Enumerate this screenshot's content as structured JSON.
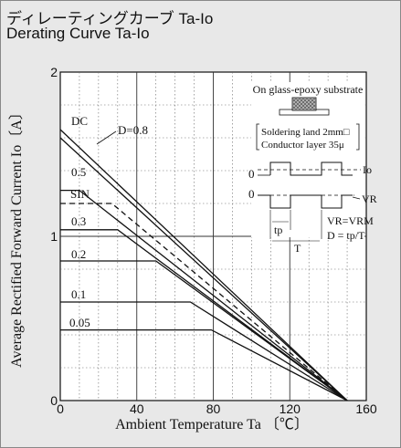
{
  "header": {
    "title_jp": "ディレーティングカーブ Ta-Io",
    "title_en": "Derating Curve Ta-Io"
  },
  "chart_data": {
    "type": "line",
    "title": "",
    "xlabel": "Ambient Temperature Ta 〔℃〕",
    "ylabel": "Average Rectified Forward Current Io〔A〕",
    "xlim": [
      0,
      160
    ],
    "ylim": [
      0,
      2
    ],
    "x_ticks": [
      "0",
      "40",
      "80",
      "120",
      "160"
    ],
    "y_ticks": [
      "0",
      "1",
      "2"
    ],
    "grid": true,
    "series": [
      {
        "name": "DC",
        "points": [
          [
            0,
            1.65
          ],
          [
            150,
            0
          ]
        ]
      },
      {
        "name": "D=0.8",
        "points": [
          [
            0,
            1.6
          ],
          [
            150,
            0
          ]
        ]
      },
      {
        "name": "0.5",
        "points": [
          [
            0,
            1.28
          ],
          [
            10,
            1.28
          ],
          [
            150,
            0
          ]
        ]
      },
      {
        "name": "SIN",
        "points": [
          [
            0,
            1.2
          ],
          [
            27,
            1.2
          ],
          [
            150,
            0
          ]
        ],
        "dashed": true
      },
      {
        "name": "0.3",
        "points": [
          [
            0,
            1.04
          ],
          [
            30,
            1.04
          ],
          [
            150,
            0
          ]
        ]
      },
      {
        "name": "0.2",
        "points": [
          [
            0,
            0.85
          ],
          [
            50,
            0.85
          ],
          [
            150,
            0
          ]
        ]
      },
      {
        "name": "0.1",
        "points": [
          [
            0,
            0.6
          ],
          [
            68,
            0.6
          ],
          [
            150,
            0
          ]
        ]
      },
      {
        "name": "0.05",
        "points": [
          [
            0,
            0.43
          ],
          [
            79,
            0.43
          ],
          [
            150,
            0
          ]
        ]
      }
    ],
    "annotations": {
      "substrate_title": "On glass-epoxy substrate",
      "land_label": "Soldering land 2mm□",
      "conductor_label": "Conductor layer 35μ",
      "io_label": "Io",
      "vr_label": "VR",
      "zero_label": "0",
      "tp_label": "tp",
      "t_label": "T",
      "vr_eq": "VR=VRM",
      "d_eq": "D = tp/T"
    }
  }
}
